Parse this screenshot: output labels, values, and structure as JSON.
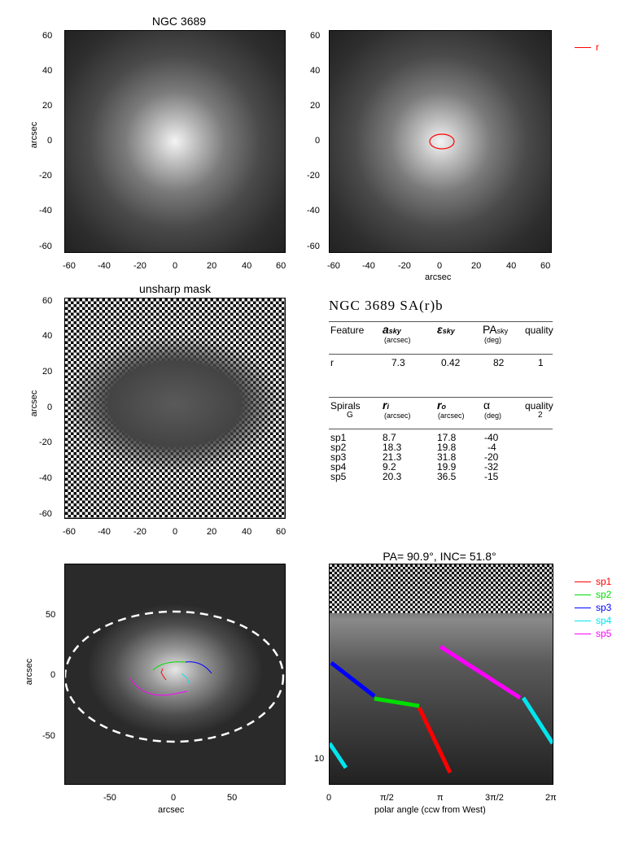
{
  "panels": {
    "top_left": {
      "title": "NGC 3689",
      "ylabel": "arcsec",
      "yticks": [
        "60",
        "40",
        "20",
        "0",
        "-20",
        "-40",
        "-60"
      ],
      "xticks": [
        "-60",
        "-40",
        "-20",
        "0",
        "20",
        "40",
        "60"
      ]
    },
    "top_right": {
      "xlabel": "arcsec",
      "legend": "r",
      "yticks": [
        "60",
        "40",
        "20",
        "0",
        "-20",
        "-40",
        "-60"
      ],
      "xticks": [
        "-60",
        "-40",
        "-20",
        "0",
        "20",
        "40",
        "60"
      ]
    },
    "mid_left": {
      "title": "unsharp mask",
      "ylabel": "arcsec",
      "yticks": [
        "60",
        "40",
        "20",
        "0",
        "-20",
        "-40",
        "-60"
      ],
      "xticks": [
        "-60",
        "-40",
        "-20",
        "0",
        "20",
        "40",
        "60"
      ]
    },
    "bottom_left": {
      "ylabel": "arcsec",
      "xlabel": "arcsec",
      "yticks": [
        "50",
        "0",
        "-50"
      ],
      "xticks": [
        "-50",
        "0",
        "50"
      ]
    },
    "bottom_right": {
      "title": "PA= 90.9°, INC= 51.8°",
      "xlabel": "polar angle (ccw from West)",
      "xticks": [
        "0",
        "π/2",
        "π",
        "3π/2",
        "2π"
      ],
      "ytick": "10",
      "legend": [
        {
          "name": "sp1",
          "color": "#ff0000"
        },
        {
          "name": "sp2",
          "color": "#00dd00"
        },
        {
          "name": "sp3",
          "color": "#0000ff"
        },
        {
          "name": "sp4",
          "color": "#00e5ee"
        },
        {
          "name": "sp5",
          "color": "#ff00ff"
        }
      ]
    }
  },
  "table": {
    "heading": "NGC 3689  SA(r)b",
    "features": {
      "headers": [
        "Feature",
        "a",
        "ε",
        "PA",
        "quality"
      ],
      "subs": {
        "a": "sky",
        "eps": "sky",
        "pa": "sky",
        "a_unit": "(arcsec)",
        "pa_unit": "(deg)"
      },
      "rows": [
        {
          "name": "r",
          "a": "7.3",
          "eps": "0.42",
          "pa": "82",
          "q": "1"
        }
      ]
    },
    "spirals": {
      "headers": [
        "Spirals",
        "r",
        "r",
        "α",
        "quality"
      ],
      "sub_g": "G",
      "sub_ri": "i",
      "sub_ro": "o",
      "units": [
        "(arcsec)",
        "(arcsec)",
        "(deg)"
      ],
      "quality_val": "2",
      "rows": [
        {
          "name": "sp1",
          "ri": "8.7",
          "ro": "17.8",
          "alpha": "-40"
        },
        {
          "name": "sp2",
          "ri": "18.3",
          "ro": "19.8",
          "alpha": "-4"
        },
        {
          "name": "sp3",
          "ri": "21.3",
          "ro": "31.8",
          "alpha": "-20"
        },
        {
          "name": "sp4",
          "ri": "9.2",
          "ro": "19.9",
          "alpha": "-32"
        },
        {
          "name": "sp5",
          "ri": "20.3",
          "ro": "36.5",
          "alpha": "-15"
        }
      ]
    }
  },
  "colors": {
    "r": "#ff0000",
    "sp1": "#ff0000",
    "sp2": "#00dd00",
    "sp3": "#0000ff",
    "sp4": "#00e5ee",
    "sp5": "#ff00ff"
  }
}
